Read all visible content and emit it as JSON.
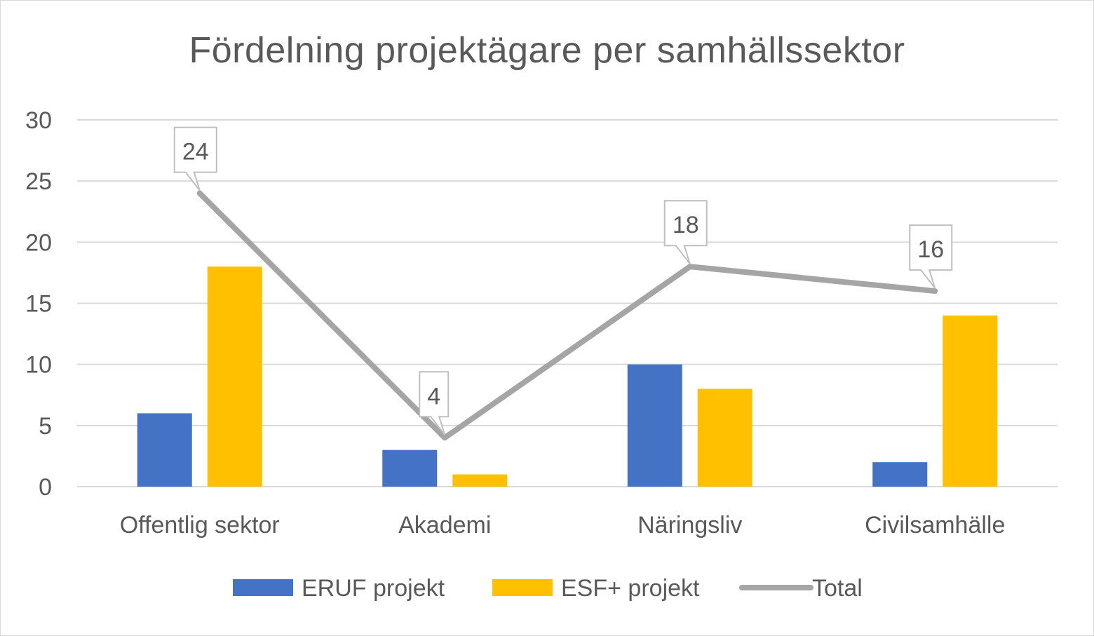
{
  "chart_data": {
    "type": "bar",
    "title": "Fördelning projektägare per samhällssektor",
    "categories": [
      "Offentlig sektor",
      "Akademi",
      "Näringsliv",
      "Civilsamhälle"
    ],
    "ylim": [
      0,
      30
    ],
    "yticks": [
      0,
      5,
      10,
      15,
      20,
      25,
      30
    ],
    "grid": true,
    "legend_position": "bottom",
    "series": [
      {
        "name": "ERUF projekt",
        "kind": "bar",
        "color": "#4472c4",
        "values": [
          6,
          3,
          10,
          2
        ]
      },
      {
        "name": "ESF+ projekt",
        "kind": "bar",
        "color": "#ffc000",
        "values": [
          18,
          1,
          8,
          14
        ]
      },
      {
        "name": "Total",
        "kind": "line",
        "color": "#a5a5a5",
        "values": [
          24,
          4,
          18,
          16
        ],
        "data_labels": [
          "24",
          "4",
          "18",
          "16"
        ]
      }
    ]
  }
}
